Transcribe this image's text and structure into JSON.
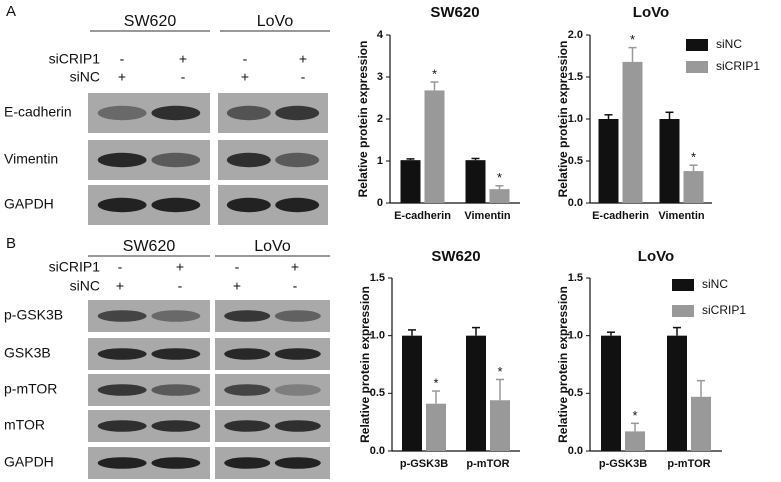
{
  "blots": [
    {
      "panel": "A",
      "groups": [
        "SW620",
        "LoVo"
      ],
      "conditions": [
        {
          "label": "siCRIP1",
          "signs": [
            "-",
            "+",
            "-",
            "+"
          ]
        },
        {
          "label": "siNC",
          "signs": [
            "+",
            "-",
            "+",
            "-"
          ]
        }
      ],
      "rows": [
        "E-cadherin",
        "Vimentin",
        "GAPDH"
      ]
    },
    {
      "panel": "B",
      "groups": [
        "SW620",
        "LoVo"
      ],
      "conditions": [
        {
          "label": "siCRIP1",
          "signs": [
            "-",
            "+",
            "-",
            "+"
          ]
        },
        {
          "label": "siNC",
          "signs": [
            "+",
            "-",
            "+",
            "-"
          ]
        }
      ],
      "rows": [
        "p-GSK3B",
        "GSK3B",
        "p-mTOR",
        "mTOR",
        "GAPDH"
      ]
    }
  ],
  "chart_data": [
    {
      "type": "bar",
      "title": "SW620",
      "y_label": "Relative protein expression",
      "categories": [
        "E-cadherin",
        "Vimentin"
      ],
      "series": [
        {
          "color": "#111111",
          "values": [
            1.02,
            1.02
          ],
          "errors": [
            0.03,
            0.04
          ]
        },
        {
          "color": "#999999",
          "values": [
            2.68,
            0.33
          ],
          "errors": [
            0.2,
            0.08
          ],
          "significance": [
            "*",
            "*"
          ]
        }
      ],
      "ylim": [
        0,
        4
      ],
      "yticks": [
        0,
        1,
        2,
        3,
        4
      ]
    },
    {
      "type": "bar",
      "title": "LoVo",
      "y_label": "Relative protein expression",
      "categories": [
        "E-cadherin",
        "Vimentin"
      ],
      "series": [
        {
          "name": "siNC",
          "color": "#111111",
          "values": [
            1.0,
            1.0
          ],
          "errors": [
            0.05,
            0.08
          ]
        },
        {
          "name": "siCRIP1",
          "color": "#999999",
          "values": [
            1.68,
            0.38
          ],
          "errors": [
            0.17,
            0.07
          ],
          "significance": [
            "*",
            "*"
          ]
        }
      ],
      "ylim": [
        0,
        2
      ],
      "yticks": [
        {
          "value": 0,
          "label": "0.0"
        },
        {
          "value": 0.5,
          "label": "0.5"
        },
        {
          "value": 1,
          "label": "1.0"
        },
        {
          "value": 1.5,
          "label": "1.5"
        },
        {
          "value": 2,
          "label": "2.0"
        }
      ]
    },
    {
      "type": "bar",
      "title": "SW620",
      "y_label": "Relative protein expression",
      "categories": [
        "p-GSK3B",
        "p-mTOR"
      ],
      "series": [
        {
          "color": "#111111",
          "values": [
            1.0,
            1.0
          ],
          "errors": [
            0.05,
            0.07
          ]
        },
        {
          "color": "#999999",
          "values": [
            0.41,
            0.44
          ],
          "errors": [
            0.11,
            0.18
          ],
          "significance": [
            "*",
            "*"
          ]
        }
      ],
      "ylim": [
        0,
        1.5
      ],
      "yticks": [
        {
          "value": 0,
          "label": "0.0"
        },
        {
          "value": 0.5,
          "label": "0.5"
        },
        {
          "value": 1,
          "label": "1.0"
        },
        {
          "value": 1.5,
          "label": "1.5"
        }
      ]
    },
    {
      "type": "bar",
      "title": "LoVo",
      "y_label": "Relative protein expression",
      "categories": [
        "p-GSK3B",
        "p-mTOR"
      ],
      "series": [
        {
          "name": "siNC",
          "color": "#111111",
          "values": [
            1.0,
            1.0
          ],
          "errors": [
            0.03,
            0.07
          ]
        },
        {
          "name": "siCRIP1",
          "color": "#999999",
          "values": [
            0.17,
            0.47
          ],
          "errors": [
            0.07,
            0.14
          ],
          "significance": [
            "*",
            null
          ]
        }
      ],
      "ylim": [
        0,
        1.5
      ],
      "yticks": [
        {
          "value": 0,
          "label": "0.0"
        },
        {
          "value": 0.5,
          "label": "0.5"
        },
        {
          "value": 1,
          "label": "1.0"
        },
        {
          "value": 1.5,
          "label": "1.5"
        }
      ]
    }
  ]
}
